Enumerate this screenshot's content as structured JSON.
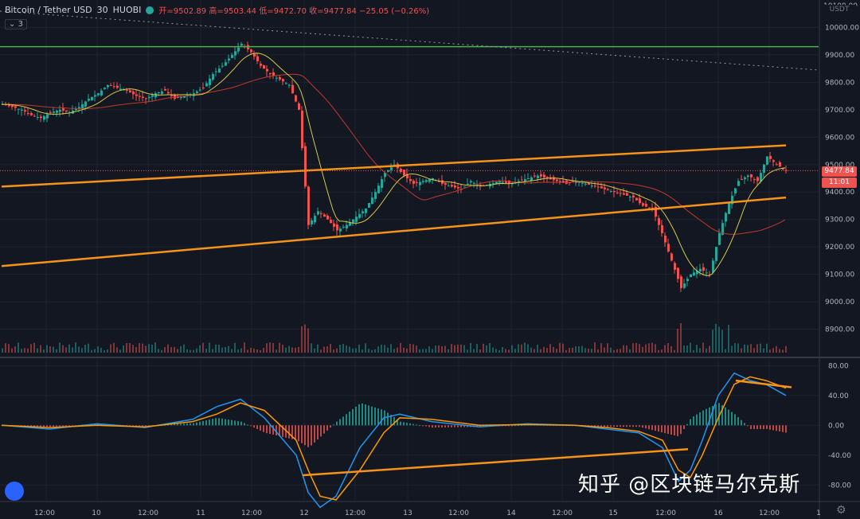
{
  "header": {
    "pair": "Bitcoin / Tether USD",
    "interval": "30",
    "exchange": "HUOBI",
    "ohlc": "开=9502.89 高=9503.44 低=9472.70 收=9477.84 −25.05 (−0.26%)",
    "indicator_count": "3"
  },
  "price_axis": {
    "currency": "USDT",
    "top_label": "10100.00",
    "last_price": "9477.84",
    "timer": "11:01"
  },
  "watermark": "知乎 @区块链马尔克斯",
  "colors": {
    "bull": "#26a69a",
    "bear": "#ef5350",
    "trendline": "#f7931a",
    "resistance": "#4caf50",
    "ma_fast": "#d4c84a",
    "ma_slow": "#c0392b",
    "macd_line": "#2196f3",
    "signal_line": "#ff9800"
  },
  "chart_data": [
    {
      "type": "candlestick",
      "ylim": [
        8800,
        10100
      ],
      "y_ticks": [
        "8900.00",
        "9000.00",
        "9100.00",
        "9200.00",
        "9300.00",
        "9400.00",
        "9500.00",
        "9600.00",
        "9700.00",
        "9800.00",
        "9900.00",
        "10000.00"
      ],
      "x_labels": [
        "12:00",
        "10",
        "12:00",
        "11",
        "12:00",
        "12",
        "12:00",
        "13",
        "12:00",
        "14",
        "12:00",
        "15",
        "12:00",
        "16",
        "12:00",
        "1"
      ],
      "close_path": [
        [
          0,
          9720
        ],
        [
          12,
          9710
        ],
        [
          24,
          9700
        ],
        [
          36,
          9680
        ],
        [
          48,
          9670
        ],
        [
          60,
          9690
        ],
        [
          72,
          9700
        ],
        [
          84,
          9690
        ],
        [
          96,
          9710
        ],
        [
          108,
          9740
        ],
        [
          120,
          9760
        ],
        [
          132,
          9790
        ],
        [
          144,
          9780
        ],
        [
          156,
          9770
        ],
        [
          168,
          9750
        ],
        [
          180,
          9740
        ],
        [
          192,
          9760
        ],
        [
          204,
          9770
        ],
        [
          216,
          9740
        ],
        [
          228,
          9750
        ],
        [
          240,
          9760
        ],
        [
          252,
          9780
        ],
        [
          264,
          9830
        ],
        [
          276,
          9860
        ],
        [
          288,
          9900
        ],
        [
          300,
          9940
        ],
        [
          312,
          9910
        ],
        [
          324,
          9860
        ],
        [
          336,
          9830
        ],
        [
          348,
          9810
        ],
        [
          360,
          9790
        ],
        [
          372,
          9700
        ],
        [
          384,
          9280
        ],
        [
          396,
          9330
        ],
        [
          408,
          9300
        ],
        [
          420,
          9260
        ],
        [
          432,
          9280
        ],
        [
          444,
          9310
        ],
        [
          456,
          9340
        ],
        [
          468,
          9400
        ],
        [
          480,
          9470
        ],
        [
          492,
          9500
        ],
        [
          504,
          9460
        ],
        [
          516,
          9430
        ],
        [
          528,
          9440
        ],
        [
          540,
          9450
        ],
        [
          552,
          9430
        ],
        [
          564,
          9420
        ],
        [
          576,
          9410
        ],
        [
          588,
          9440
        ],
        [
          600,
          9420
        ],
        [
          612,
          9430
        ],
        [
          624,
          9440
        ],
        [
          636,
          9430
        ],
        [
          648,
          9440
        ],
        [
          660,
          9450
        ],
        [
          672,
          9460
        ],
        [
          684,
          9450
        ],
        [
          696,
          9440
        ],
        [
          708,
          9430
        ],
        [
          720,
          9440
        ],
        [
          732,
          9430
        ],
        [
          744,
          9420
        ],
        [
          756,
          9410
        ],
        [
          768,
          9400
        ],
        [
          780,
          9390
        ],
        [
          792,
          9380
        ],
        [
          804,
          9350
        ],
        [
          816,
          9340
        ],
        [
          828,
          9250
        ],
        [
          840,
          9150
        ],
        [
          852,
          9050
        ],
        [
          864,
          9100
        ],
        [
          876,
          9120
        ],
        [
          888,
          9100
        ],
        [
          900,
          9250
        ],
        [
          912,
          9360
        ],
        [
          924,
          9440
        ],
        [
          936,
          9460
        ],
        [
          948,
          9440
        ],
        [
          960,
          9530
        ],
        [
          972,
          9500
        ],
        [
          984,
          9478
        ]
      ],
      "overlays": {
        "resistance_level": 9930,
        "channel_upper": [
          [
            0,
            9420
          ],
          [
            985,
            9570
          ]
        ],
        "channel_lower": [
          [
            0,
            9130
          ],
          [
            985,
            9380
          ]
        ]
      },
      "last_price": 9477.84
    },
    {
      "type": "line",
      "name": "MACD",
      "ylim": [
        -100,
        90
      ],
      "y_ticks": [
        "80.00",
        "40.00",
        "0.00",
        "-40.00",
        "-80.00"
      ],
      "macd_path": [
        [
          0,
          0
        ],
        [
          60,
          -5
        ],
        [
          120,
          2
        ],
        [
          180,
          -3
        ],
        [
          240,
          8
        ],
        [
          270,
          25
        ],
        [
          300,
          35
        ],
        [
          330,
          10
        ],
        [
          350,
          -15
        ],
        [
          370,
          -40
        ],
        [
          385,
          -90
        ],
        [
          400,
          -110
        ],
        [
          420,
          -95
        ],
        [
          450,
          -30
        ],
        [
          480,
          10
        ],
        [
          500,
          15
        ],
        [
          540,
          5
        ],
        [
          600,
          -2
        ],
        [
          660,
          2
        ],
        [
          720,
          0
        ],
        [
          760,
          -5
        ],
        [
          800,
          -10
        ],
        [
          830,
          -30
        ],
        [
          850,
          -75
        ],
        [
          865,
          -60
        ],
        [
          880,
          -20
        ],
        [
          900,
          40
        ],
        [
          920,
          70
        ],
        [
          940,
          60
        ],
        [
          960,
          55
        ],
        [
          985,
          40
        ]
      ],
      "signal_path": [
        [
          0,
          0
        ],
        [
          60,
          -3
        ],
        [
          120,
          0
        ],
        [
          180,
          -2
        ],
        [
          240,
          5
        ],
        [
          270,
          15
        ],
        [
          300,
          30
        ],
        [
          330,
          20
        ],
        [
          350,
          0
        ],
        [
          370,
          -20
        ],
        [
          385,
          -60
        ],
        [
          400,
          -95
        ],
        [
          420,
          -100
        ],
        [
          450,
          -60
        ],
        [
          480,
          -10
        ],
        [
          500,
          10
        ],
        [
          540,
          8
        ],
        [
          600,
          0
        ],
        [
          660,
          1
        ],
        [
          720,
          0
        ],
        [
          760,
          -3
        ],
        [
          800,
          -8
        ],
        [
          830,
          -20
        ],
        [
          850,
          -60
        ],
        [
          865,
          -70
        ],
        [
          880,
          -40
        ],
        [
          900,
          10
        ],
        [
          920,
          55
        ],
        [
          940,
          65
        ],
        [
          960,
          60
        ],
        [
          985,
          50
        ]
      ],
      "divergence_upper": [
        [
          922,
          60
        ],
        [
          992,
          51
        ]
      ],
      "divergence_lower": [
        [
          378,
          -67
        ],
        [
          862,
          -32
        ]
      ]
    }
  ]
}
